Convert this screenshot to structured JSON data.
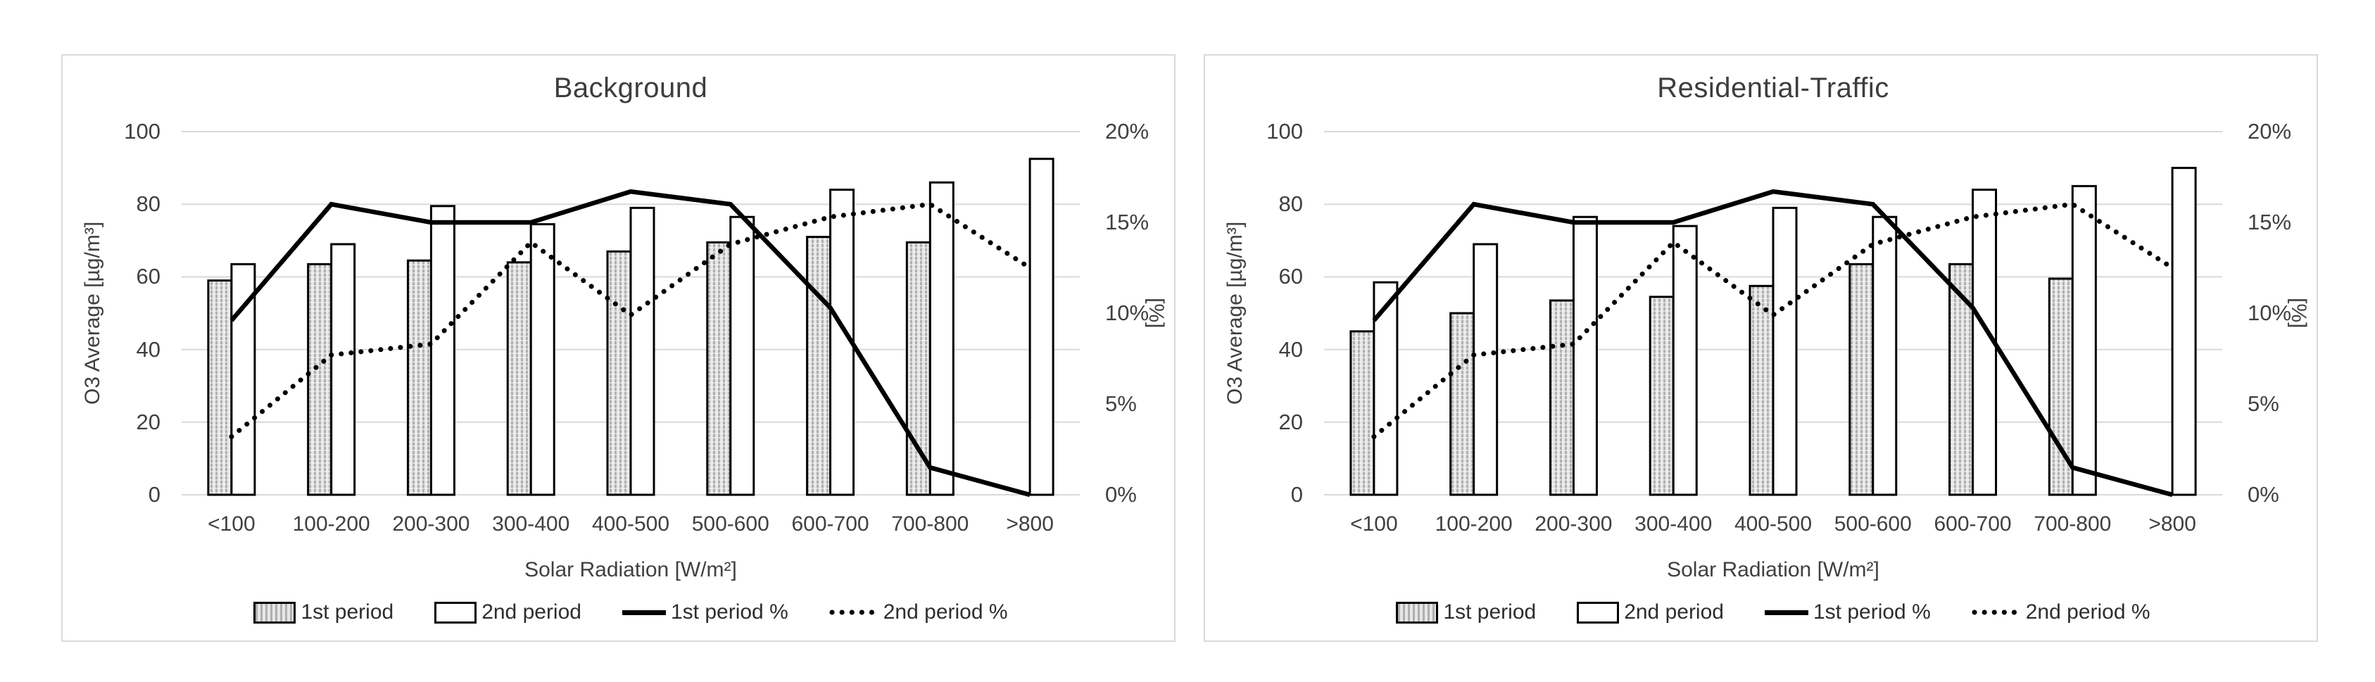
{
  "figure": {
    "legend": [
      "1st period",
      "2nd period",
      "1st period %",
      "2nd period %"
    ],
    "colors": {
      "panel_border": "#d9d9d9",
      "grid": "#d9d9d9",
      "text": "#404040",
      "bar_border": "#000000",
      "hatch_fill": "#e7e7e7",
      "hatch_stripe": "#b0b0b0",
      "line": "#000000"
    }
  },
  "chart_data": [
    {
      "type": "bar",
      "subtype": "bar-line-combo",
      "title": "Background",
      "categories": [
        "<100",
        "100-200",
        "200-300",
        "300-400",
        "400-500",
        "500-600",
        "600-700",
        "700-800",
        ">800"
      ],
      "xlabel": "Solar Radiation [W/m²]",
      "ylabel": "O3 Average [µg/m³]",
      "y2label": "[%]",
      "ylim": [
        0,
        100
      ],
      "yticks": [
        "100",
        "80",
        "60",
        "40",
        "20",
        "0"
      ],
      "y2lim": [
        0,
        20
      ],
      "y2ticks": [
        "20%",
        "15%",
        "10%",
        "5%",
        "0%"
      ],
      "grid": true,
      "legend_position": "bottom",
      "series": [
        {
          "name": "1st period",
          "type": "bar",
          "style": "hatched",
          "axis": "left",
          "values": [
            59,
            63.5,
            64.5,
            64,
            67,
            69.5,
            71,
            69.5,
            null
          ]
        },
        {
          "name": "2nd period",
          "type": "bar",
          "style": "white",
          "axis": "left",
          "values": [
            63.5,
            69,
            79.5,
            74.5,
            79,
            76.5,
            84,
            86,
            92.5
          ]
        },
        {
          "name": "1st period %",
          "type": "line",
          "style": "solid",
          "axis": "right",
          "values": [
            9.6,
            16,
            15,
            15,
            16.7,
            16,
            10.3,
            1.5,
            0
          ]
        },
        {
          "name": "2nd period %",
          "type": "line",
          "style": "dotted",
          "axis": "right",
          "values": [
            3.2,
            7.7,
            8.3,
            13.9,
            9.9,
            13.8,
            15.3,
            16,
            12.5
          ]
        }
      ]
    },
    {
      "type": "bar",
      "subtype": "bar-line-combo",
      "title": "Residential-Traffic",
      "categories": [
        "<100",
        "100-200",
        "200-300",
        "300-400",
        "400-500",
        "500-600",
        "600-700",
        "700-800",
        ">800"
      ],
      "xlabel": "Solar Radiation [W/m²]",
      "ylabel": "O3 Average [µg/m³]",
      "y2label": "[%]",
      "ylim": [
        0,
        100
      ],
      "yticks": [
        "100",
        "80",
        "60",
        "40",
        "20",
        "0"
      ],
      "y2lim": [
        0,
        20
      ],
      "y2ticks": [
        "20%",
        "15%",
        "10%",
        "5%",
        "0%"
      ],
      "grid": true,
      "legend_position": "bottom",
      "series": [
        {
          "name": "1st period",
          "type": "bar",
          "style": "hatched",
          "axis": "left",
          "values": [
            45,
            50,
            53.5,
            54.5,
            57.5,
            63.5,
            63.5,
            59.5,
            null
          ]
        },
        {
          "name": "2nd period",
          "type": "bar",
          "style": "white",
          "axis": "left",
          "values": [
            58.5,
            69,
            76.5,
            74,
            79,
            76.5,
            84,
            85,
            90
          ]
        },
        {
          "name": "1st period %",
          "type": "line",
          "style": "solid",
          "axis": "right",
          "values": [
            9.6,
            16,
            15,
            15,
            16.7,
            16,
            10.3,
            1.5,
            0
          ]
        },
        {
          "name": "2nd period %",
          "type": "line",
          "style": "dotted",
          "axis": "right",
          "values": [
            3.2,
            7.7,
            8.3,
            13.9,
            9.9,
            13.8,
            15.3,
            16,
            12.5
          ]
        }
      ]
    }
  ]
}
